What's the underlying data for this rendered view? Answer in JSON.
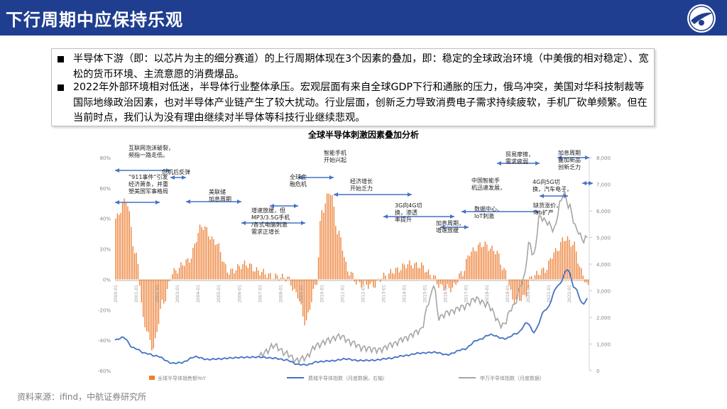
{
  "header": {
    "title": "下行周期中应保持乐观"
  },
  "bullets": [
    "半导体下游（即：以芯片为主的细分赛道）的上行周期体现在3个因素的叠加，即：稳定的全球政治环境（中美俄的相对稳定）、宽松的货币环境、主流意愿的消费爆品。",
    "2022年外部环境相对低迷，半导体行业整体承压。宏观层面有来自全球GDP下行和通胀的压力，俄乌冲突，美国对华科技制裁等国际地缘政治因素，也对半导体产业链产生了较大扰动。行业层面，创新乏力导致消费电子需求持续疲软，手机厂砍单频繁。但在当前时点，我们认为没有理由继续对半导体等科技行业继续悲观。"
  ],
  "source": "资料来源：ifind，中航证券研究所",
  "colors": {
    "header_bg": "#1f3e8f",
    "bar": "#ed7d31",
    "blue_line": "#4472c4",
    "gray_line": "#a5a5a5",
    "arrow": "#4472c4"
  },
  "chart_data": {
    "type": "bar",
    "title": "全球半导体刺激因素叠加分析",
    "left_axis": {
      "min": -60,
      "max": 80,
      "step": 20,
      "unit": "%"
    },
    "right_axis": {
      "min": 0,
      "max": 8000,
      "step": 1000
    },
    "legend": [
      {
        "name": "全球半导体销售额YoY",
        "kind": "bar"
      },
      {
        "name": "费城半导体指数（月度数据，右轴）",
        "kind": "line-blue"
      },
      {
        "name": "申万半导体指数（月度数据）",
        "kind": "line-gray"
      }
    ],
    "x_labels": [
      "2000-01",
      "2001-01",
      "2002-01",
      "2003-01",
      "2004-01",
      "2005-01",
      "2006-01",
      "2007-01",
      "2008-01",
      "2009-01",
      "2010-01",
      "2011-01",
      "2012-01",
      "2013-01",
      "2014-01",
      "2015-01",
      "2016-01",
      "2017-01",
      "2018-01",
      "2019-01",
      "2020-01",
      "2021-01",
      "2022-01"
    ],
    "yoy_anchors": [
      [
        2000.0,
        40
      ],
      [
        2000.5,
        52
      ],
      [
        2001.0,
        15
      ],
      [
        2001.4,
        -30
      ],
      [
        2001.8,
        -45
      ],
      [
        2002.3,
        -15
      ],
      [
        2002.8,
        5
      ],
      [
        2003.5,
        12
      ],
      [
        2004.2,
        35
      ],
      [
        2004.8,
        25
      ],
      [
        2005.5,
        5
      ],
      [
        2006.3,
        10
      ],
      [
        2007.0,
        5
      ],
      [
        2007.6,
        2
      ],
      [
        2008.3,
        1
      ],
      [
        2008.8,
        -10
      ],
      [
        2009.2,
        -28
      ],
      [
        2009.7,
        -5
      ],
      [
        2010.0,
        45
      ],
      [
        2010.4,
        58
      ],
      [
        2010.8,
        30
      ],
      [
        2011.3,
        5
      ],
      [
        2011.8,
        -3
      ],
      [
        2012.5,
        -4
      ],
      [
        2013.0,
        2
      ],
      [
        2013.6,
        6
      ],
      [
        2014.2,
        10
      ],
      [
        2014.8,
        9
      ],
      [
        2015.3,
        3
      ],
      [
        2015.8,
        -5
      ],
      [
        2016.3,
        -6
      ],
      [
        2016.8,
        4
      ],
      [
        2017.2,
        18
      ],
      [
        2017.8,
        23
      ],
      [
        2018.4,
        19
      ],
      [
        2018.9,
        5
      ],
      [
        2019.3,
        -14
      ],
      [
        2019.8,
        -12
      ],
      [
        2020.2,
        2
      ],
      [
        2020.8,
        6
      ],
      [
        2021.3,
        18
      ],
      [
        2021.8,
        27
      ],
      [
        2022.2,
        23
      ],
      [
        2022.6,
        5
      ],
      [
        2022.9,
        -5
      ]
    ],
    "sox_anchors": [
      [
        2000.0,
        1150
      ],
      [
        2000.4,
        1250
      ],
      [
        2000.9,
        850
      ],
      [
        2001.5,
        650
      ],
      [
        2002.0,
        550
      ],
      [
        2002.8,
        280
      ],
      [
        2003.2,
        300
      ],
      [
        2003.9,
        520
      ],
      [
        2004.5,
        420
      ],
      [
        2005.0,
        440
      ],
      [
        2005.7,
        480
      ],
      [
        2006.2,
        500
      ],
      [
        2007.0,
        510
      ],
      [
        2007.7,
        470
      ],
      [
        2008.3,
        400
      ],
      [
        2008.9,
        230
      ],
      [
        2009.3,
        220
      ],
      [
        2009.8,
        330
      ],
      [
        2010.5,
        370
      ],
      [
        2011.2,
        440
      ],
      [
        2011.8,
        380
      ],
      [
        2012.5,
        390
      ],
      [
        2013.3,
        460
      ],
      [
        2014.0,
        560
      ],
      [
        2014.8,
        660
      ],
      [
        2015.5,
        690
      ],
      [
        2016.1,
        600
      ],
      [
        2016.9,
        800
      ],
      [
        2017.6,
        1150
      ],
      [
        2018.2,
        1350
      ],
      [
        2018.9,
        1200
      ],
      [
        2019.5,
        1400
      ],
      [
        2020.0,
        1800
      ],
      [
        2020.3,
        1450
      ],
      [
        2020.9,
        2300
      ],
      [
        2021.5,
        3200
      ],
      [
        2021.95,
        3800
      ],
      [
        2022.3,
        3100
      ],
      [
        2022.7,
        2500
      ],
      [
        2022.9,
        2700
      ]
    ],
    "sw_anchors": [
      [
        2007.0,
        550
      ],
      [
        2007.3,
        700
      ],
      [
        2007.7,
        950
      ],
      [
        2008.3,
        650
      ],
      [
        2008.8,
        380
      ],
      [
        2009.2,
        480
      ],
      [
        2009.8,
        950
      ],
      [
        2010.4,
        1150
      ],
      [
        2010.9,
        1300
      ],
      [
        2011.5,
        1050
      ],
      [
        2012.0,
        850
      ],
      [
        2012.8,
        780
      ],
      [
        2013.5,
        1000
      ],
      [
        2014.0,
        1200
      ],
      [
        2014.8,
        1500
      ],
      [
        2015.3,
        2700
      ],
      [
        2015.45,
        3300
      ],
      [
        2015.7,
        2000
      ],
      [
        2016.2,
        2200
      ],
      [
        2016.9,
        2400
      ],
      [
        2017.5,
        2700
      ],
      [
        2018.0,
        2500
      ],
      [
        2018.8,
        1700
      ],
      [
        2019.3,
        2400
      ],
      [
        2019.8,
        3400
      ],
      [
        2020.1,
        4800
      ],
      [
        2020.3,
        4300
      ],
      [
        2020.6,
        5800
      ],
      [
        2020.9,
        5600
      ],
      [
        2021.3,
        5300
      ],
      [
        2021.6,
        6300
      ],
      [
        2021.75,
        6700
      ],
      [
        2022.0,
        6200
      ],
      [
        2022.4,
        5300
      ],
      [
        2022.7,
        4900
      ],
      [
        2022.9,
        5000
      ]
    ],
    "annotations": [
      {
        "lines": [
          "互联网泡沫破裂，",
          "频指一路走低。"
        ]
      },
      {
        "lines": [
          "“911事件”引发",
          "经济萧条，并重",
          "塑美国军事格局"
        ]
      },
      {
        "lines": [
          "危机后反弹"
        ]
      },
      {
        "lines": [
          "美联储",
          "加息周期"
        ]
      },
      {
        "lines": [
          "增速放缓，但",
          "MP3/3.5G手机",
          "/各式电脑刺激",
          "需求正增长"
        ]
      },
      {
        "lines": [
          "全球金",
          "融危机"
        ]
      },
      {
        "lines": [
          "智能手机",
          "开始兴起"
        ]
      },
      {
        "lines": [
          "经济增长",
          "开始乏力"
        ]
      },
      {
        "lines": [
          "3G向4G切",
          "换，渗透",
          "率提升"
        ]
      },
      {
        "lines": [
          "加息周期，",
          "增速放缓"
        ]
      },
      {
        "lines": [
          "中国智能手",
          "机迅速发展，"
        ]
      },
      {
        "lines": [
          "数据中心、",
          "IoT刺激"
        ]
      },
      {
        "lines": [
          "贸易摩擦，",
          "需求疲弱"
        ]
      },
      {
        "lines": [
          "4G向5G切",
          "换，汽车电子，"
        ]
      },
      {
        "lines": [
          "缺货涨价，",
          "fab扩产"
        ]
      },
      {
        "lines": [
          "加息周期",
          "叠加新品",
          "创新乏力"
        ]
      }
    ]
  }
}
